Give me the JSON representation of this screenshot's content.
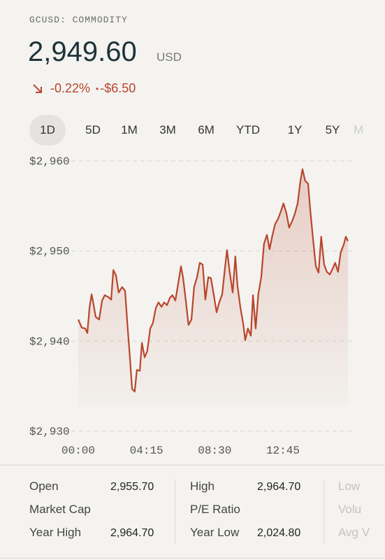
{
  "header": {
    "symbol": "GCUSD: COMMODITY",
    "price": "2,949.60",
    "currency": "USD",
    "change_percent": "-0.22%",
    "separator": "•",
    "change_amount": "-$6.50"
  },
  "tabs": [
    "1D",
    "5D",
    "1M",
    "3M",
    "6M",
    "YTD",
    "1Y",
    "5Y",
    "M"
  ],
  "chart_data": {
    "type": "area",
    "x": [
      0,
      13,
      26,
      34,
      42,
      50,
      57,
      65,
      78,
      89,
      99,
      112,
      123,
      131,
      141,
      151,
      164,
      175,
      183,
      193,
      201,
      211,
      219,
      230,
      238,
      248,
      258,
      269,
      279,
      290,
      300,
      311,
      321,
      332,
      342,
      352,
      363,
      373,
      384,
      392,
      402,
      412,
      423,
      433,
      444,
      454,
      465,
      475,
      486,
      496,
      506,
      517,
      527,
      538,
      548,
      556,
      566,
      577,
      587,
      595,
      606,
      616,
      624,
      634,
      645,
      653,
      663,
      673,
      684,
      694,
      705,
      715,
      726,
      736,
      747,
      757,
      767,
      778,
      788,
      799,
      809,
      820,
      830,
      838,
      848,
      859,
      867,
      877,
      888,
      898,
      908,
      919,
      929,
      940,
      950,
      960,
      971,
      981,
      992,
      1000,
      1008
    ],
    "values": [
      2942.4,
      2941.5,
      2941.4,
      2940.9,
      2943.7,
      2945.2,
      2944.1,
      2942.7,
      2942.4,
      2944.5,
      2945.1,
      2944.9,
      2944.6,
      2947.9,
      2947.3,
      2945.4,
      2946.0,
      2945.6,
      2942.1,
      2938.2,
      2934.7,
      2934.4,
      2936.8,
      2936.7,
      2939.8,
      2938.2,
      2938.9,
      2941.4,
      2942.0,
      2943.7,
      2944.3,
      2943.8,
      2944.3,
      2944.0,
      2944.8,
      2945.1,
      2944.5,
      2946.3,
      2948.3,
      2947.0,
      2944.5,
      2941.8,
      2942.4,
      2946.0,
      2947.1,
      2948.7,
      2948.5,
      2944.6,
      2947.1,
      2947.0,
      2945.2,
      2943.2,
      2944.3,
      2945.2,
      2948.0,
      2950.1,
      2947.7,
      2945.4,
      2949.4,
      2946.2,
      2943.7,
      2942.0,
      2940.1,
      2941.4,
      2940.6,
      2945.1,
      2941.4,
      2945.2,
      2947.1,
      2950.8,
      2951.8,
      2950.2,
      2951.8,
      2953.0,
      2953.6,
      2954.4,
      2955.3,
      2954.2,
      2952.6,
      2953.3,
      2954.1,
      2955.3,
      2957.7,
      2959.1,
      2957.8,
      2957.5,
      2954.6,
      2951.5,
      2948.3,
      2947.6,
      2951.6,
      2948.5,
      2947.7,
      2947.4,
      2948.0,
      2948.7,
      2947.7,
      2949.9,
      2950.7,
      2951.6,
      2951.1
    ],
    "color": "#b8462c",
    "xlim": [
      0,
      1008
    ],
    "xticks": [
      {
        "value": 0,
        "label": "00:00"
      },
      {
        "value": 255,
        "label": "04:15"
      },
      {
        "value": 510,
        "label": "08:30"
      },
      {
        "value": 765,
        "label": "12:45"
      }
    ],
    "ylim": [
      2930,
      2960
    ],
    "yticks": [
      {
        "value": 2930,
        "label": "$2,930"
      },
      {
        "value": 2940,
        "label": "$2,940"
      },
      {
        "value": 2950,
        "label": "$2,950"
      },
      {
        "value": 2960,
        "label": "$2,960"
      }
    ],
    "grid": true
  },
  "stats": [
    {
      "items": [
        {
          "label": "Open",
          "value": "2,955.70"
        },
        {
          "label": "Market Cap"
        },
        {
          "label": "Year High",
          "value": "2,964.70"
        }
      ]
    },
    {
      "items": [
        {
          "label": "High",
          "value": "2,964.70"
        },
        {
          "label": "P/E Ratio"
        },
        {
          "label": "Year Low",
          "value": "2,024.80"
        }
      ]
    },
    {
      "items": [
        {
          "label": "Low"
        },
        {
          "label": "Volu"
        },
        {
          "label": "Avg V"
        }
      ]
    }
  ]
}
